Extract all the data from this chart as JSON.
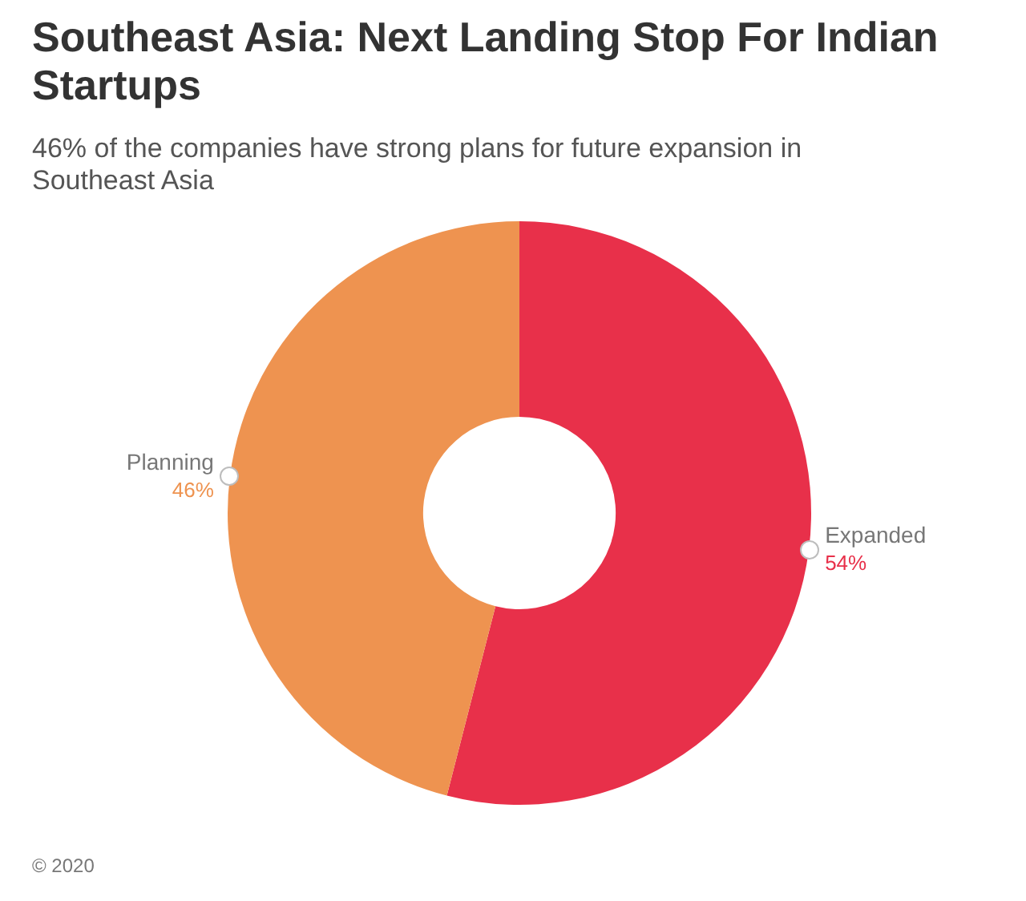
{
  "chart_data": {
    "type": "donut",
    "title": "Southeast Asia: Next Landing Stop For Indian Startups",
    "subtitle": "46% of the companies have strong plans for future expansion in Southeast Asia",
    "categories": [
      "Expanded",
      "Planning"
    ],
    "values": [
      54,
      46
    ],
    "colors": [
      "#e8304a",
      "#ee9350"
    ],
    "value_labels": [
      "54%",
      "46%"
    ],
    "legend": false,
    "annotations": [
      "© 2020"
    ]
  }
}
